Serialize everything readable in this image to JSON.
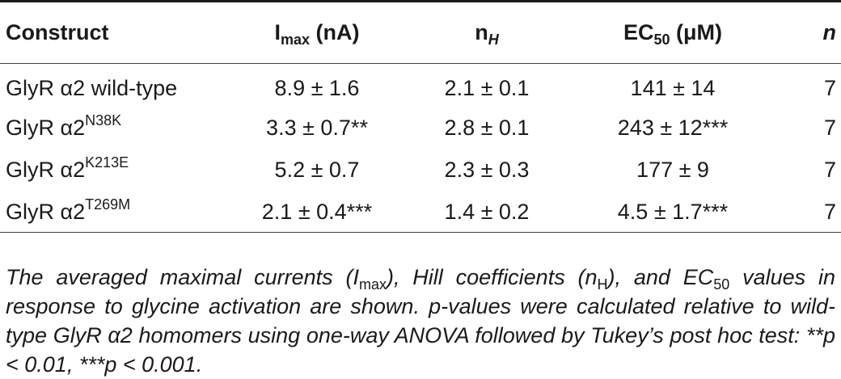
{
  "table": {
    "headers": {
      "construct": "Construct",
      "imax_main": "I",
      "imax_sub": "max",
      "imax_unit": " (nA)",
      "nh_main": "n",
      "nh_sub": "H",
      "ec50_main": "EC",
      "ec50_sub": "50",
      "ec50_unit": " (μM)",
      "n": "n"
    },
    "rows": [
      {
        "construct_base": "GlyR α2 wild-type",
        "construct_sup": "",
        "imax": "8.9 ± 1.6",
        "nh": "2.1 ± 0.1",
        "ec50": "141 ± 14",
        "n": "7"
      },
      {
        "construct_base": "GlyR α2",
        "construct_sup": "N38K",
        "imax": "3.3 ± 0.7**",
        "nh": "2.8 ± 0.1",
        "ec50": "243 ± 12***",
        "n": "7"
      },
      {
        "construct_base": "GlyR α2",
        "construct_sup": "K213E",
        "imax": "5.2 ± 0.7",
        "nh": "2.3 ± 0.3",
        "ec50": "177 ± 9",
        "n": "7"
      },
      {
        "construct_base": "GlyR α2",
        "construct_sup": "T269M",
        "imax": "2.1 ± 0.4***",
        "nh": "1.4 ± 0.2",
        "ec50": "4.5 ± 1.7***",
        "n": "7"
      }
    ]
  },
  "caption": {
    "p1": "The averaged maximal currents (I",
    "s1": "max",
    "p2": "), Hill coefficients (n",
    "s2": "H",
    "p3": "), and EC",
    "s3": "50",
    "p4": " values in response to glycine activation are shown. p-values were calculated relative to wild-type GlyR α2 homomers using one-way ANOVA followed by Tukey’s post hoc test: **p < 0.01, ***p < 0.001."
  }
}
